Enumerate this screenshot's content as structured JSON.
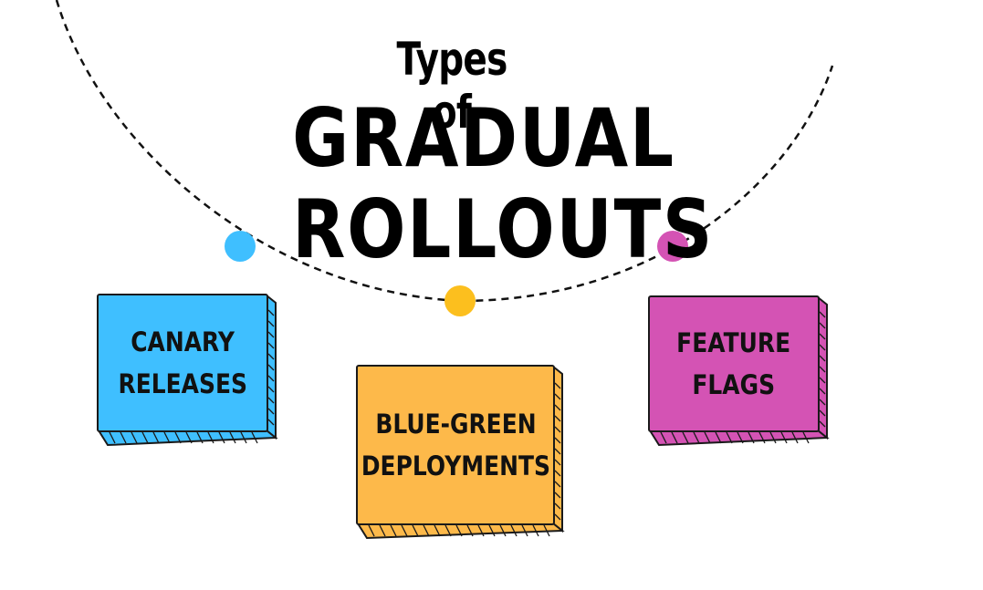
{
  "title": {
    "line_small": "Types of",
    "line_big_1": "GRADUAL",
    "line_big_2": "ROLLOUTS"
  },
  "nodes": [
    {
      "id": "canary",
      "line1": "CANARY",
      "line2": "RELEASES",
      "color": "#3fbfff",
      "dot_color": "#3fbfff"
    },
    {
      "id": "bluegreen",
      "line1": "BLUE-GREEN",
      "line2": "DEPLOYMENTS",
      "color": "#fdb94a",
      "dot_color": "#fcbf1e"
    },
    {
      "id": "feature",
      "line1": "FEATURE",
      "line2": "FLAGS",
      "color": "#d453b4",
      "dot_color": "#d453b4"
    }
  ]
}
